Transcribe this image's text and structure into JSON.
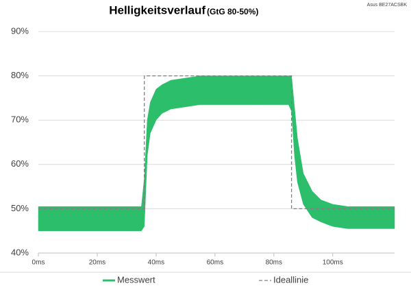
{
  "chart_data": {
    "type": "band",
    "title": "Helligkeitsverlauf",
    "subtitle": "(GtG 80-50%)",
    "model": "Asus BE27ACSBK",
    "xlim": [
      0,
      121
    ],
    "xticks": [
      {
        "value": 0,
        "label": "0ms"
      },
      {
        "value": 20,
        "label": "20ms"
      },
      {
        "value": 40,
        "label": "40ms"
      },
      {
        "value": 60,
        "label": "60ms"
      },
      {
        "value": 80,
        "label": "80ms"
      },
      {
        "value": 100,
        "label": "100ms"
      }
    ],
    "ylim": [
      40,
      90
    ],
    "yticks": [
      {
        "value": 40,
        "label": "40%"
      },
      {
        "value": 50,
        "label": "50%"
      },
      {
        "value": 60,
        "label": "60%"
      },
      {
        "value": 70,
        "label": "70%"
      },
      {
        "value": 80,
        "label": "80%"
      },
      {
        "value": 90,
        "label": "90%"
      }
    ],
    "grid": true,
    "series": [
      {
        "name": "Messwert",
        "color": "#2dbe6c",
        "x": [
          0,
          5,
          10,
          15,
          20,
          25,
          30,
          35,
          36,
          37,
          38,
          40,
          42,
          45,
          50,
          55,
          60,
          65,
          70,
          75,
          80,
          85,
          86,
          87,
          88,
          90,
          93,
          96,
          100,
          105,
          110,
          115,
          121
        ],
        "low": [
          45,
          45,
          45,
          45,
          45,
          45,
          45,
          45,
          46,
          62,
          67,
          70,
          71.5,
          72.5,
          73,
          73.5,
          73.5,
          73.5,
          73.5,
          73.5,
          73.5,
          73.5,
          72,
          62,
          56,
          51,
          48,
          47,
          46,
          45.5,
          45.5,
          45.5,
          45.5
        ],
        "high": [
          50.5,
          50.5,
          50.5,
          50.5,
          50.5,
          50.5,
          50.5,
          50.5,
          57,
          70,
          74,
          77,
          78,
          79,
          79.5,
          80,
          80,
          80,
          80,
          80,
          80,
          80,
          80,
          73,
          66,
          58,
          54,
          52,
          51,
          50.5,
          50.5,
          50.5,
          50.5
        ]
      },
      {
        "name": "Ideallinie",
        "color": "#7f7f7f",
        "dashed": true,
        "x": [
          0,
          36,
          36,
          86,
          86,
          121
        ],
        "values": [
          50,
          50,
          80,
          80,
          50,
          50
        ]
      }
    ]
  }
}
